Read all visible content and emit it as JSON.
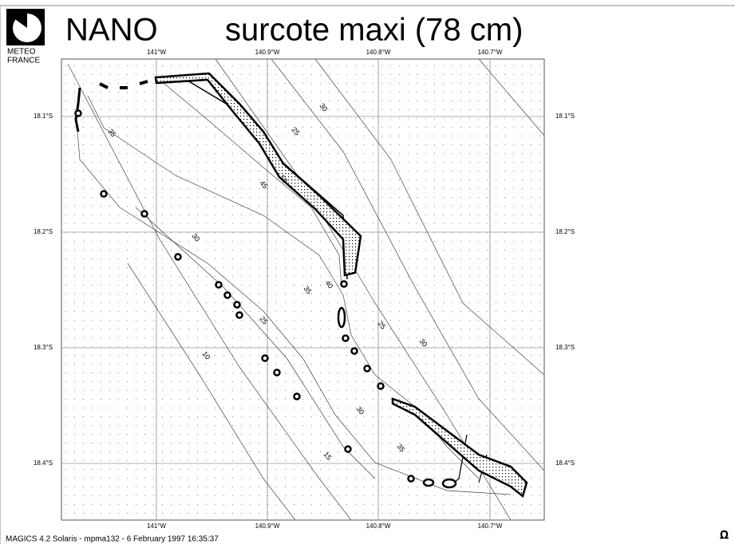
{
  "header": {
    "logo": [
      "METEO",
      "FRANCE"
    ],
    "model": "NANO",
    "title": "surcote maxi  (78 cm)"
  },
  "map": {
    "lon_labels": [
      "141°W",
      "140.9°W",
      "140.8°W",
      "140.7°W"
    ],
    "lat_labels": [
      "18.1°S",
      "18.2°S",
      "18.3°S",
      "18.4°S"
    ],
    "contour_labels": [
      "30",
      "25",
      "35",
      "50",
      "45",
      "30",
      "35",
      "40",
      "25",
      "25",
      "30",
      "10",
      "30",
      "35",
      "15"
    ]
  },
  "footer": "MAGICS 4.2 Solaris - mpma132 - 6 February 1997 16:35:37"
}
